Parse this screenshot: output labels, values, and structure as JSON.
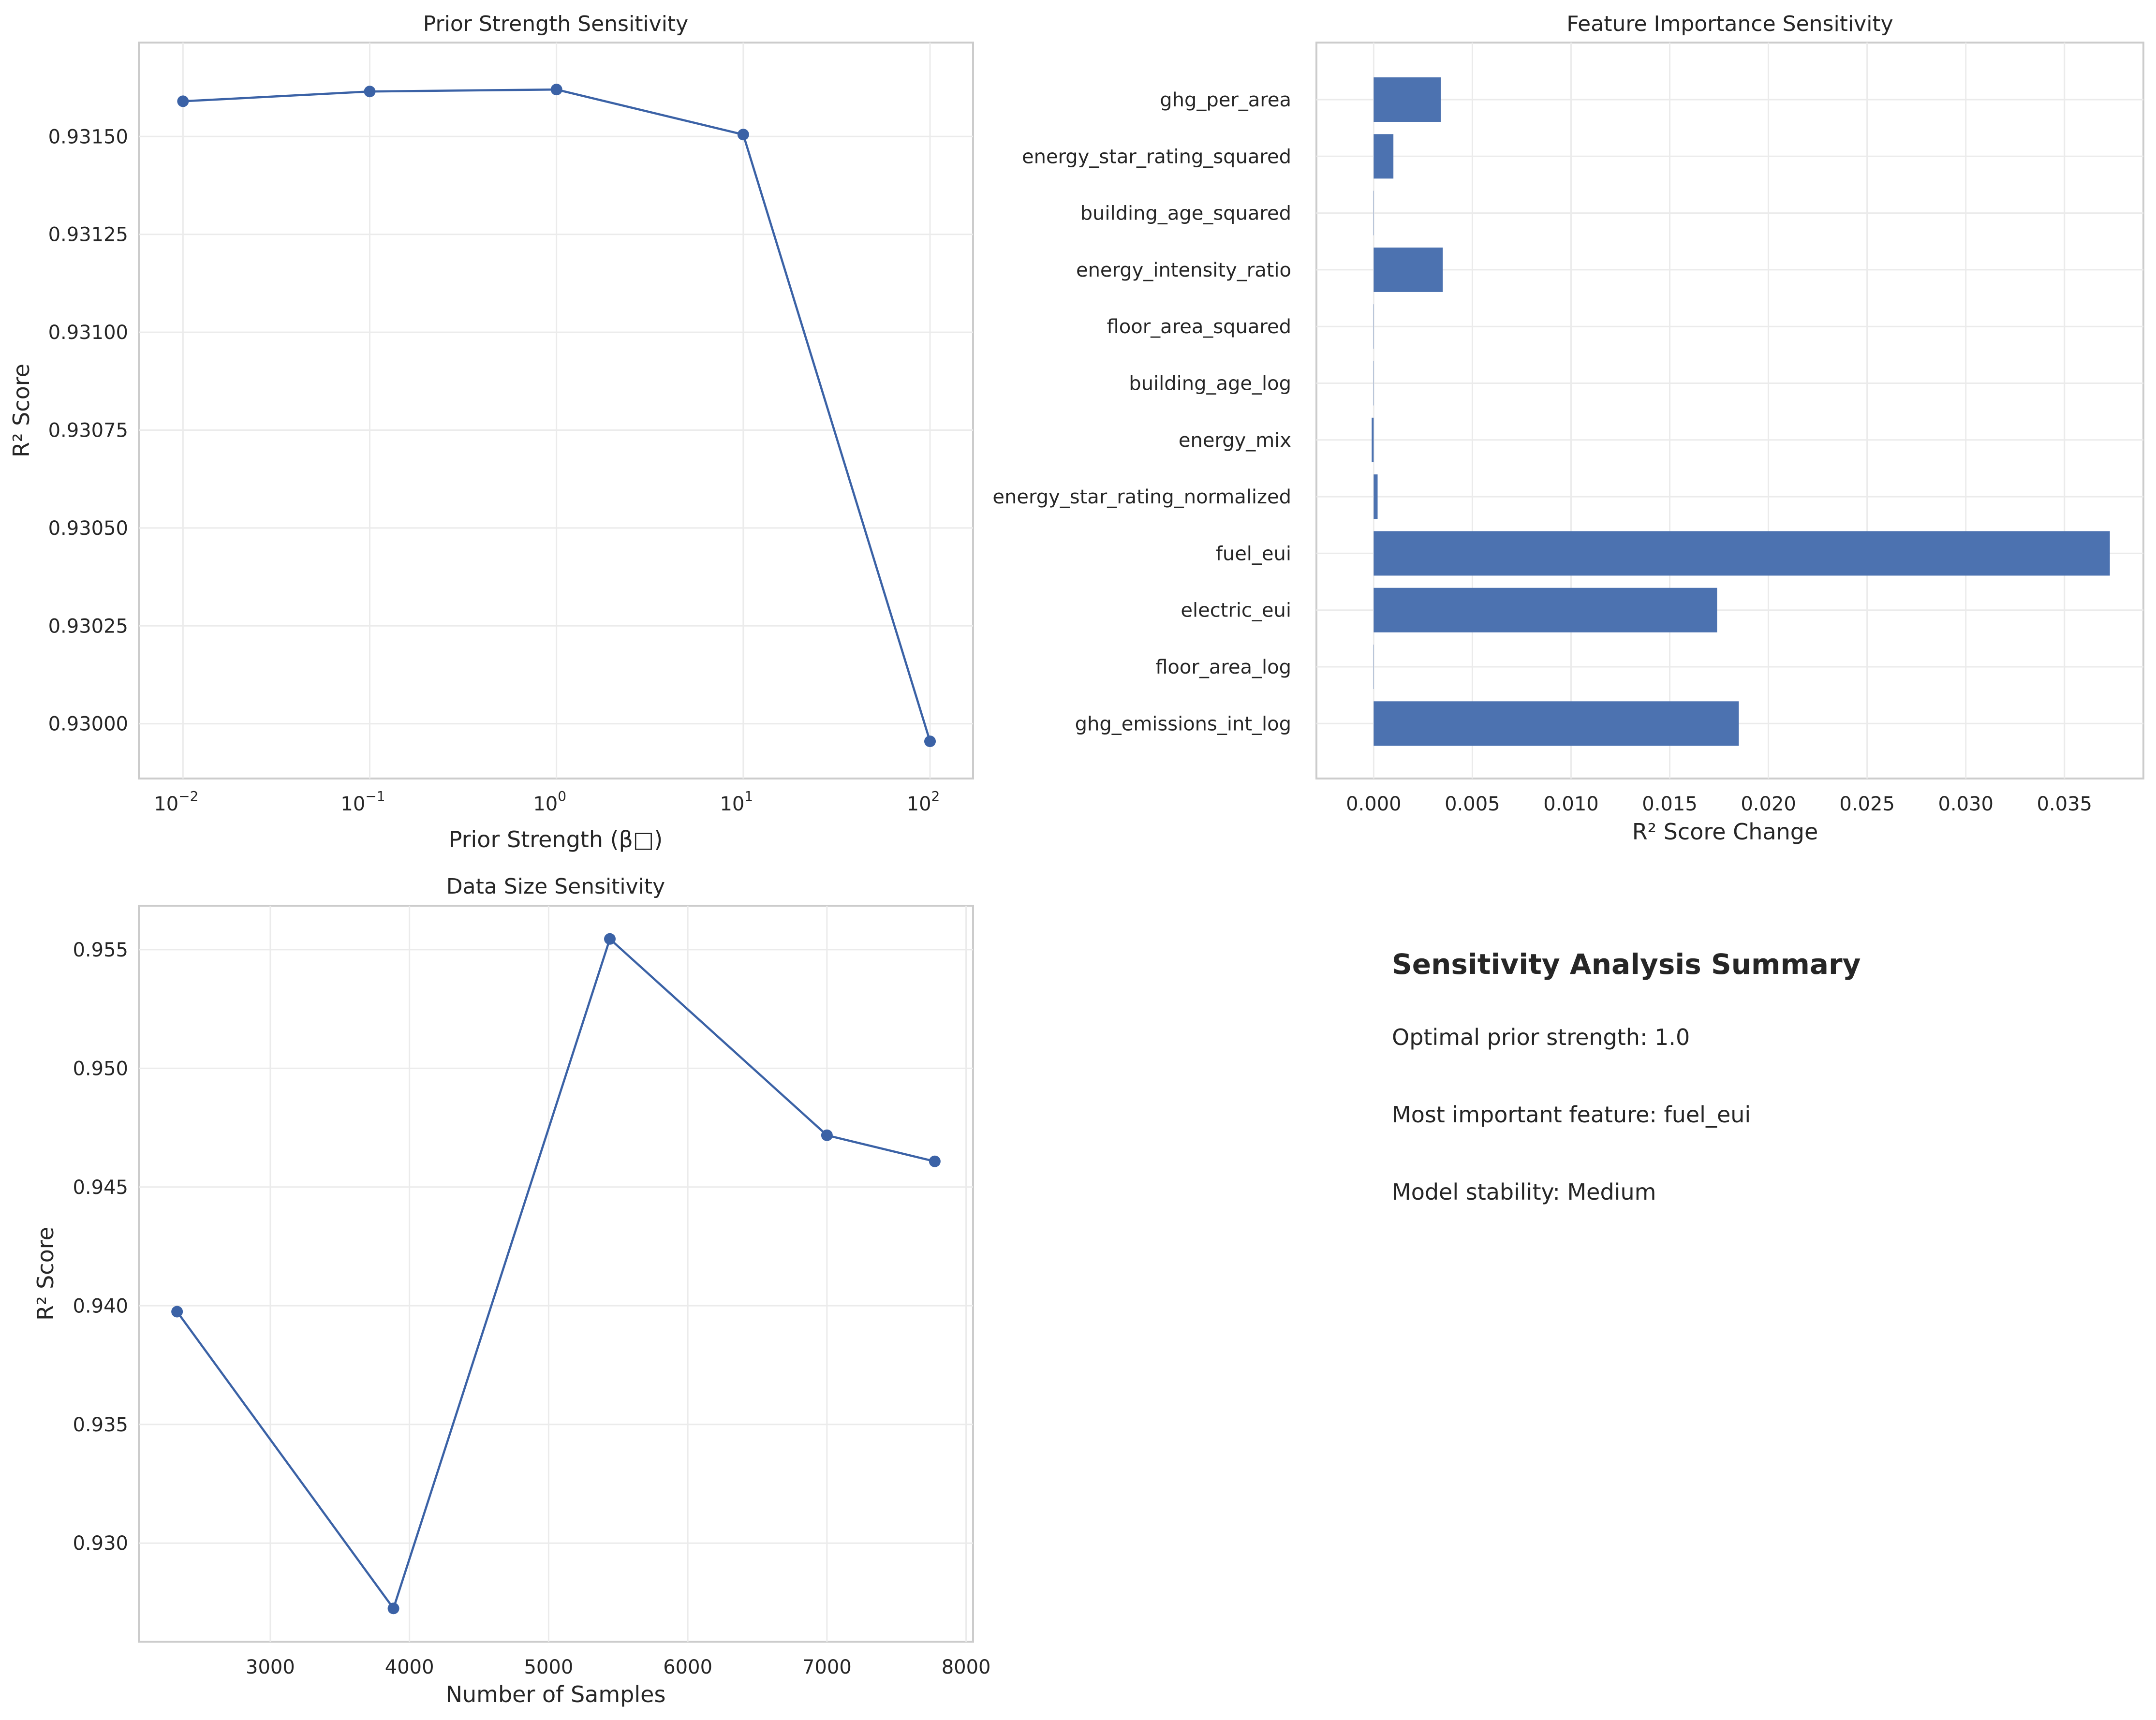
{
  "chart_data": [
    {
      "id": "prior",
      "type": "line",
      "title": "Prior Strength Sensitivity",
      "xlabel": "Prior Strength (β□)",
      "ylabel": "R² Score",
      "xscale": "log",
      "x": [
        0.01,
        0.1,
        1,
        10,
        100
      ],
      "values": [
        0.93159,
        0.931615,
        0.93162,
        0.931505,
        0.929955
      ],
      "xlim": [
        0.0058,
        170
      ],
      "ylim": [
        0.92986,
        0.93174
      ],
      "xticks": [
        {
          "value": 0.01,
          "base": "10",
          "exp": "−2"
        },
        {
          "value": 0.1,
          "base": "10",
          "exp": "−1"
        },
        {
          "value": 1,
          "base": "10",
          "exp": "0"
        },
        {
          "value": 10,
          "base": "10",
          "exp": "1"
        },
        {
          "value": 100,
          "base": "10",
          "exp": "2"
        }
      ],
      "yticks": [
        {
          "value": 0.93,
          "label": "0.93000"
        },
        {
          "value": 0.93025,
          "label": "0.93025"
        },
        {
          "value": 0.9305,
          "label": "0.93050"
        },
        {
          "value": 0.93075,
          "label": "0.93075"
        },
        {
          "value": 0.931,
          "label": "0.93100"
        },
        {
          "value": 0.93125,
          "label": "0.93125"
        },
        {
          "value": 0.9315,
          "label": "0.93150"
        }
      ],
      "color": "#3b62a6",
      "grid": true
    },
    {
      "id": "feat",
      "type": "bar",
      "orientation": "horizontal",
      "title": "Feature Importance Sensitivity",
      "xlabel": "R² Score Change",
      "ylabel": "",
      "categories": [
        "ghg_per_area",
        "energy_star_rating_squared",
        "building_age_squared",
        "energy_intensity_ratio",
        "floor_area_squared",
        "building_age_log",
        "energy_mix",
        "energy_star_rating_normalized",
        "fuel_eui",
        "electric_eui",
        "floor_area_log",
        "ghg_emissions_int_log"
      ],
      "values": [
        0.0034,
        0.001,
        0.0,
        0.0035,
        0.0,
        0.0,
        -0.0001,
        0.0002,
        0.0373,
        0.0174,
        0.0,
        0.0185
      ],
      "xlim": [
        -0.0029,
        0.039
      ],
      "xticks": [
        {
          "value": 0.0,
          "label": "0.000"
        },
        {
          "value": 0.005,
          "label": "0.005"
        },
        {
          "value": 0.01,
          "label": "0.010"
        },
        {
          "value": 0.015,
          "label": "0.015"
        },
        {
          "value": 0.02,
          "label": "0.020"
        },
        {
          "value": 0.025,
          "label": "0.025"
        },
        {
          "value": 0.03,
          "label": "0.030"
        },
        {
          "value": 0.035,
          "label": "0.035"
        }
      ],
      "color": "#4c72b0",
      "grid": true
    },
    {
      "id": "size",
      "type": "line",
      "title": "Data Size Sensitivity",
      "xlabel": "Number of Samples",
      "ylabel": "R² Score",
      "x": [
        2330,
        3885,
        5440,
        7000,
        7775
      ],
      "values": [
        0.93975,
        0.92725,
        0.95545,
        0.94718,
        0.94608
      ],
      "xlim": [
        2055,
        8050
      ],
      "ylim": [
        0.92585,
        0.95685
      ],
      "xticks": [
        {
          "value": 3000,
          "label": "3000"
        },
        {
          "value": 4000,
          "label": "4000"
        },
        {
          "value": 5000,
          "label": "5000"
        },
        {
          "value": 6000,
          "label": "6000"
        },
        {
          "value": 7000,
          "label": "7000"
        },
        {
          "value": 8000,
          "label": "8000"
        }
      ],
      "yticks": [
        {
          "value": 0.93,
          "label": "0.930"
        },
        {
          "value": 0.935,
          "label": "0.935"
        },
        {
          "value": 0.94,
          "label": "0.940"
        },
        {
          "value": 0.945,
          "label": "0.945"
        },
        {
          "value": 0.95,
          "label": "0.950"
        },
        {
          "value": 0.955,
          "label": "0.955"
        }
      ],
      "color": "#3b62a6",
      "grid": true
    }
  ],
  "summary": {
    "title": "Sensitivity Analysis Summary",
    "optimal_prior": "Optimal prior strength: 1.0",
    "most_important": "Most important feature: fuel_eui",
    "stability": "Model stability: Medium"
  }
}
